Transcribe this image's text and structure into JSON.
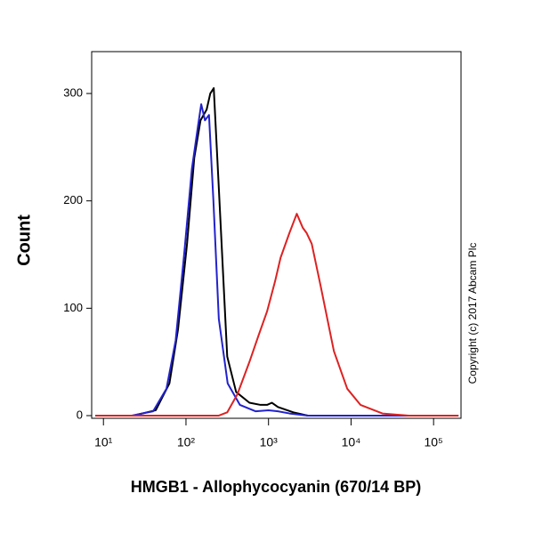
{
  "chart_data": {
    "type": "line",
    "log_x": true,
    "x_label": "HMGB1 - Allophycocyanin (670/14 BP)",
    "y_label": "Count",
    "annotation": "Copyright (c) 2017 Abcam Plc",
    "xlim": [
      7.2,
      215000
    ],
    "ylim": [
      -2.5,
      339
    ],
    "xticks": [
      {
        "value": 10,
        "label": "10¹"
      },
      {
        "value": 100,
        "label": "10²"
      },
      {
        "value": 1000,
        "label": "10³"
      },
      {
        "value": 10000,
        "label": "10⁴"
      },
      {
        "value": 100000,
        "label": "10⁵"
      }
    ],
    "yticks": [
      0,
      100,
      200,
      300
    ],
    "series": [
      {
        "color": "#000000",
        "x": [
          8,
          23,
          43,
          63,
          80,
          103,
          126,
          150,
          178,
          197,
          217,
          247,
          316,
          405,
          587,
          800,
          960,
          1100,
          1300,
          2000,
          3000,
          200000
        ],
        "values": [
          0,
          0,
          5,
          30,
          80,
          160,
          240,
          275,
          285,
          300,
          305,
          220,
          55,
          22,
          12,
          10,
          10,
          12,
          8,
          3,
          0,
          0
        ]
      },
      {
        "color": "#2222cc",
        "x": [
          8,
          22,
          40,
          58,
          75,
          95,
          118,
          140,
          153,
          170,
          190,
          215,
          250,
          320,
          450,
          700,
          1000,
          1300,
          1800,
          3000,
          200000
        ],
        "values": [
          0,
          0,
          4,
          25,
          70,
          150,
          230,
          270,
          290,
          275,
          280,
          200,
          90,
          30,
          10,
          4,
          5,
          4,
          2,
          0,
          0
        ]
      },
      {
        "color": "#dd2222",
        "x": [
          8,
          250,
          316,
          420,
          587,
          760,
          960,
          1200,
          1400,
          1790,
          2200,
          2600,
          2900,
          3340,
          4300,
          6200,
          9000,
          13000,
          24000,
          50000,
          200000
        ],
        "values": [
          0,
          0,
          3,
          20,
          50,
          75,
          97,
          125,
          147,
          170,
          188,
          175,
          170,
          160,
          120,
          60,
          25,
          10,
          2,
          0,
          0
        ]
      }
    ]
  }
}
